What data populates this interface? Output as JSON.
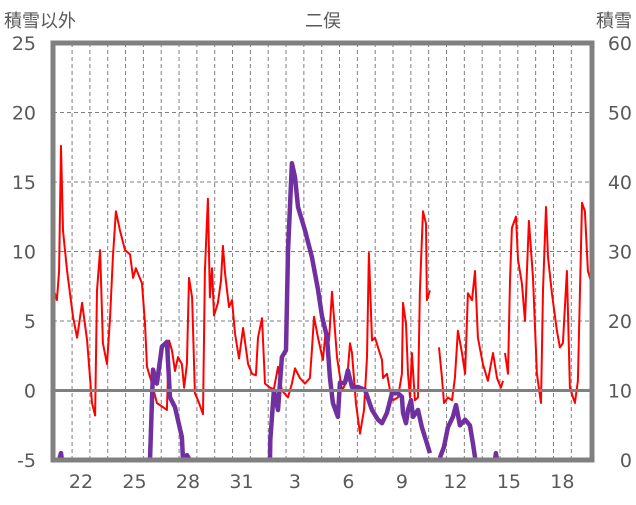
{
  "chart_data": {
    "type": "line",
    "title": "二俣",
    "ylabel_left": "積雪以外",
    "ylabel_right": "積雪",
    "xlim": [
      20.43,
      50.66
    ],
    "ylim_left": [
      -5,
      25
    ],
    "ylim_right": [
      0,
      60
    ],
    "yticks_left": [
      "-5",
      "0",
      "5",
      "10",
      "15",
      "20",
      "25"
    ],
    "yticks_right": [
      "0",
      "10",
      "20",
      "30",
      "40",
      "50",
      "60"
    ],
    "xticks": [
      {
        "t": 22,
        "label": "22"
      },
      {
        "t": 25,
        "label": "25"
      },
      {
        "t": 28,
        "label": "28"
      },
      {
        "t": 31,
        "label": "31"
      },
      {
        "t": 34,
        "label": "3"
      },
      {
        "t": 37,
        "label": "6"
      },
      {
        "t": 40,
        "label": "9"
      },
      {
        "t": 43,
        "label": "12"
      },
      {
        "t": 46,
        "label": "15"
      },
      {
        "t": 49,
        "label": "18"
      }
    ],
    "grid": true,
    "colors": {
      "other": "#FF0000",
      "snow": "#7030A0",
      "frame": "#808080"
    },
    "series": [
      {
        "name": "積雪以外",
        "axis": "left",
        "points": [
          [
            20.43,
            7.4
          ],
          [
            20.65,
            6.5
          ],
          [
            20.77,
            8.6
          ],
          [
            20.88,
            17.6
          ],
          [
            20.99,
            11.5
          ],
          [
            21.22,
            8.6
          ],
          [
            21.55,
            5.3
          ],
          [
            21.78,
            3.8
          ],
          [
            22.06,
            6.3
          ],
          [
            22.34,
            3.6
          ],
          [
            22.62,
            -0.9
          ],
          [
            22.79,
            -1.8
          ],
          [
            22.9,
            7.2
          ],
          [
            23.07,
            10.1
          ],
          [
            23.23,
            3.4
          ],
          [
            23.46,
            1.9
          ],
          [
            23.63,
            5.3
          ],
          [
            23.79,
            9.6
          ],
          [
            23.96,
            12.9
          ],
          [
            24.19,
            11.5
          ],
          [
            24.47,
            10.1
          ],
          [
            24.75,
            9.8
          ],
          [
            24.92,
            8.1
          ],
          [
            25.08,
            8.8
          ],
          [
            25.42,
            7.7
          ],
          [
            25.59,
            4.8
          ],
          [
            25.7,
            1.7
          ],
          [
            25.98,
            0.5
          ],
          [
            26.26,
            -0.9
          ],
          [
            26.6,
            -1.2
          ],
          [
            26.82,
            -1.4
          ],
          [
            26.94,
            3.6
          ],
          [
            27.1,
            2.9
          ],
          [
            27.27,
            1.4
          ],
          [
            27.44,
            2.4
          ],
          [
            27.66,
            1.9
          ],
          [
            27.78,
            0.2
          ],
          [
            27.94,
            1.9
          ],
          [
            28.06,
            8.1
          ],
          [
            28.23,
            6.7
          ],
          [
            28.39,
            -0.2
          ],
          [
            28.56,
            -0.7
          ],
          [
            28.84,
            -1.7
          ],
          [
            28.95,
            8.6
          ],
          [
            29.12,
            13.8
          ],
          [
            29.23,
            6.7
          ],
          [
            29.35,
            8.8
          ],
          [
            29.46,
            5.4
          ],
          [
            29.68,
            6.3
          ],
          [
            29.85,
            7.9
          ],
          [
            29.96,
            10.4
          ],
          [
            30.08,
            8.4
          ],
          [
            30.3,
            6.0
          ],
          [
            30.47,
            6.5
          ],
          [
            30.64,
            4.1
          ],
          [
            30.86,
            2.3
          ],
          [
            31.09,
            4.5
          ],
          [
            31.37,
            1.9
          ],
          [
            31.59,
            1.2
          ],
          [
            31.81,
            1.1
          ],
          [
            31.93,
            3.8
          ],
          [
            32.15,
            5.2
          ],
          [
            32.32,
            0.5
          ],
          [
            32.6,
            0.2
          ],
          [
            32.82,
            0.1
          ],
          [
            33.05,
            1.7
          ],
          [
            33.27,
            0
          ],
          [
            33.61,
            -0.5
          ],
          [
            33.83,
            0.5
          ],
          [
            34.0,
            1.6
          ],
          [
            34.28,
            0.9
          ],
          [
            34.56,
            0.5
          ],
          [
            34.84,
            0.9
          ],
          [
            34.95,
            2.9
          ],
          [
            35.07,
            5.3
          ],
          [
            35.29,
            3.8
          ],
          [
            35.57,
            2.2
          ],
          [
            35.74,
            4.5
          ],
          [
            35.91,
            3.6
          ],
          [
            36.08,
            7.1
          ],
          [
            36.36,
            2.4
          ],
          [
            36.64,
            0
          ],
          [
            36.92,
            0.7
          ],
          [
            37.09,
            3.4
          ],
          [
            37.2,
            2.7
          ],
          [
            37.42,
            -0.9
          ],
          [
            37.65,
            -3.1
          ],
          [
            37.87,
            -1.4
          ],
          [
            38.04,
            2.4
          ],
          [
            38.15,
            9.9
          ],
          [
            38.32,
            3.6
          ],
          [
            38.49,
            3.8
          ],
          [
            38.66,
            3.1
          ],
          [
            38.88,
            2.2
          ],
          [
            38.94,
            0.9
          ],
          [
            39.16,
            1.2
          ],
          [
            39.33,
            0
          ],
          [
            39.5,
            -0.7
          ],
          [
            39.78,
            -0.5
          ],
          [
            40.0,
            1.2
          ],
          [
            40.06,
            6.3
          ],
          [
            40.23,
            4.8
          ],
          [
            40.34,
            1.2
          ],
          [
            40.45,
            -0.5
          ],
          [
            40.56,
            2.7
          ],
          [
            40.73,
            -0.7
          ],
          [
            40.9,
            -0.5
          ],
          [
            41.01,
            7.2
          ],
          [
            41.18,
            12.9
          ],
          [
            41.35,
            12.0
          ],
          [
            41.4,
            6.5
          ],
          [
            41.57,
            7.2
          ],
          null,
          [
            42.08,
            3.1
          ],
          [
            42.25,
            0.9
          ],
          [
            42.36,
            -0.9
          ],
          [
            42.58,
            -0.5
          ],
          [
            42.81,
            -0.7
          ],
          [
            42.97,
            0.9
          ],
          [
            43.14,
            4.3
          ],
          [
            43.37,
            2.7
          ],
          [
            43.54,
            1.2
          ],
          [
            43.7,
            7.0
          ],
          [
            43.93,
            6.5
          ],
          [
            44.1,
            8.6
          ],
          [
            44.26,
            3.8
          ],
          [
            44.54,
            1.9
          ],
          [
            44.82,
            0.7
          ],
          [
            45.11,
            2.7
          ],
          [
            45.33,
            0.9
          ],
          [
            45.55,
            0.2
          ],
          [
            45.67,
            0.7
          ],
          null,
          [
            45.78,
            2.7
          ],
          [
            45.95,
            1.2
          ],
          [
            46.06,
            7.9
          ],
          [
            46.17,
            11.7
          ],
          [
            46.4,
            12.5
          ],
          [
            46.51,
            9.4
          ],
          [
            46.73,
            7.7
          ],
          [
            46.9,
            5.0
          ],
          [
            47.12,
            12.2
          ],
          [
            47.35,
            8.1
          ],
          [
            47.57,
            1.2
          ],
          [
            47.8,
            -0.9
          ],
          [
            47.91,
            7.2
          ],
          [
            48.08,
            13.2
          ],
          [
            48.19,
            9.6
          ],
          [
            48.41,
            7.0
          ],
          [
            48.69,
            4.3
          ],
          [
            48.86,
            3.1
          ],
          [
            49.03,
            3.4
          ],
          [
            49.25,
            8.6
          ],
          [
            49.42,
            0.2
          ],
          [
            49.7,
            -0.9
          ],
          [
            49.87,
            0.7
          ],
          [
            50.1,
            13.5
          ],
          [
            50.26,
            12.9
          ],
          [
            50.43,
            8.6
          ],
          [
            50.66,
            7.6
          ]
        ]
      },
      {
        "name": "積雪",
        "axis": "right",
        "points": [
          [
            20.43,
            0
          ],
          [
            20.77,
            0
          ],
          [
            20.88,
            1
          ],
          [
            20.93,
            0
          ],
          [
            25.87,
            0
          ],
          [
            26.04,
            13
          ],
          [
            26.26,
            11
          ],
          [
            26.54,
            16.3
          ],
          [
            26.82,
            17
          ],
          [
            26.99,
            9
          ],
          [
            27.27,
            7.6
          ],
          [
            27.66,
            3.3
          ],
          [
            27.72,
            0
          ],
          [
            27.94,
            0.7
          ],
          [
            28.11,
            0
          ],
          [
            32.6,
            0
          ],
          [
            32.62,
            2.9
          ],
          [
            32.82,
            10
          ],
          [
            33.05,
            7.2
          ],
          [
            33.27,
            14.8
          ],
          [
            33.5,
            15.8
          ],
          [
            33.61,
            30
          ],
          [
            33.83,
            42.7
          ],
          [
            34.0,
            40.7
          ],
          [
            34.17,
            36.4
          ],
          [
            34.56,
            33.1
          ],
          [
            34.95,
            29.2
          ],
          [
            35.29,
            24.5
          ],
          [
            35.52,
            20.6
          ],
          [
            35.8,
            17.7
          ],
          [
            35.96,
            11.9
          ],
          [
            36.13,
            8.2
          ],
          [
            36.41,
            6.2
          ],
          [
            36.52,
            11.1
          ],
          [
            36.8,
            11.1
          ],
          [
            36.97,
            12.9
          ],
          [
            37.2,
            10.5
          ],
          [
            37.53,
            10.5
          ],
          [
            37.93,
            10.1
          ],
          [
            38.32,
            7.2
          ],
          [
            38.66,
            5.8
          ],
          [
            38.88,
            5.3
          ],
          [
            39.16,
            6.8
          ],
          [
            39.44,
            9.6
          ],
          [
            39.78,
            9.6
          ],
          [
            40.0,
            9.1
          ],
          [
            40.06,
            6.8
          ],
          [
            40.23,
            5.3
          ],
          [
            40.34,
            7.2
          ],
          [
            40.51,
            8.6
          ],
          [
            40.62,
            6.2
          ],
          [
            40.9,
            7.2
          ],
          [
            41.12,
            4.7
          ],
          [
            41.4,
            2.4
          ],
          [
            41.57,
            1.0
          ],
          null,
          [
            42.13,
            0.3
          ],
          [
            42.36,
            1.9
          ],
          [
            42.58,
            4.7
          ],
          [
            42.86,
            6.2
          ],
          [
            43.03,
            7.9
          ],
          [
            43.25,
            5.0
          ],
          [
            43.54,
            5.8
          ],
          [
            43.81,
            5.0
          ],
          [
            43.98,
            2.4
          ],
          [
            44.1,
            0.4
          ],
          [
            44.15,
            0
          ],
          [
            45.22,
            0
          ],
          [
            45.27,
            1
          ],
          [
            45.33,
            0
          ],
          [
            50.66,
            0
          ]
        ]
      }
    ]
  }
}
